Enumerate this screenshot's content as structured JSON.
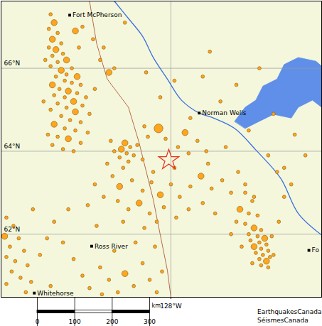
{
  "chart_data": {
    "type": "map",
    "xlim": [
      -137.6,
      -119.48
    ],
    "ylim": [
      60.48,
      67.62
    ],
    "xticks": [
      {
        "value": -128,
        "label": "128°W"
      }
    ],
    "yticks": [
      {
        "value": 62,
        "label": "62°N"
      },
      {
        "value": 64,
        "label": "64°N"
      },
      {
        "value": 66,
        "label": "66°N"
      }
    ],
    "grid": true,
    "earthquakes": {
      "color": "#ffa51f",
      "marker": "circle",
      "points": [
        [
          -134.8,
          67.3,
          2
        ],
        [
          -134.6,
          67.1,
          3
        ],
        [
          -134.9,
          66.95,
          2
        ],
        [
          -134.4,
          66.85,
          2
        ],
        [
          -134.7,
          66.7,
          3
        ],
        [
          -134.2,
          66.6,
          2
        ],
        [
          -134.9,
          66.5,
          2
        ],
        [
          -134.5,
          66.45,
          3
        ],
        [
          -134.1,
          66.35,
          2
        ],
        [
          -134.7,
          66.3,
          2
        ],
        [
          -133.9,
          66.2,
          3
        ],
        [
          -134.4,
          66.15,
          2
        ],
        [
          -134.8,
          66.05,
          2
        ],
        [
          -133.6,
          66.0,
          2
        ],
        [
          -134.2,
          65.95,
          3
        ],
        [
          -133.9,
          65.85,
          2
        ],
        [
          -134.5,
          65.8,
          2
        ],
        [
          -133.3,
          65.8,
          3
        ],
        [
          -134.0,
          65.7,
          2
        ],
        [
          -133.6,
          65.65,
          2
        ],
        [
          -134.7,
          65.6,
          3
        ],
        [
          -133.1,
          65.6,
          2
        ],
        [
          -134.3,
          65.5,
          2
        ],
        [
          -133.8,
          65.45,
          3
        ],
        [
          -133.3,
          65.4,
          2
        ],
        [
          -134.6,
          65.35,
          2
        ],
        [
          -134.0,
          65.3,
          2
        ],
        [
          -132.8,
          65.3,
          2
        ],
        [
          -133.5,
          65.2,
          3
        ],
        [
          -134.4,
          65.15,
          2
        ],
        [
          -133.0,
          65.1,
          2
        ],
        [
          -133.9,
          65.05,
          2
        ],
        [
          -134.8,
          65.0,
          2
        ],
        [
          -133.4,
          64.95,
          3
        ],
        [
          -132.6,
          64.9,
          2
        ],
        [
          -134.2,
          64.85,
          2
        ],
        [
          -133.7,
          64.75,
          2
        ],
        [
          -133.1,
          64.7,
          2
        ],
        [
          -134.6,
          64.65,
          3
        ],
        [
          -134.0,
          64.55,
          2
        ],
        [
          -133.4,
          64.5,
          2
        ],
        [
          -132.7,
          64.45,
          2
        ],
        [
          -134.4,
          64.35,
          2
        ],
        [
          -133.8,
          64.3,
          3
        ],
        [
          -133.1,
          64.2,
          2
        ],
        [
          -134.7,
          64.15,
          2
        ],
        [
          -134.1,
          64.05,
          2
        ],
        [
          -133.5,
          64.0,
          2
        ],
        [
          -132.4,
          66.7,
          2
        ],
        [
          -132.0,
          66.2,
          2
        ],
        [
          -131.5,
          65.9,
          3
        ],
        [
          -132.3,
          65.5,
          2
        ],
        [
          -131.8,
          66.5,
          2
        ],
        [
          -133.2,
          66.5,
          2
        ],
        [
          -133.4,
          66.9,
          3
        ],
        [
          -135.1,
          66.2,
          2
        ],
        [
          -135.2,
          65.2,
          2
        ],
        [
          -134.95,
          64.4,
          2
        ],
        [
          -133.0,
          67.0,
          2
        ],
        [
          -130.6,
          67.1,
          2
        ],
        [
          -131.2,
          66.0,
          2
        ],
        [
          -130.8,
          64.05,
          3
        ],
        [
          -130.5,
          63.95,
          2
        ],
        [
          -130.3,
          64.1,
          2
        ],
        [
          -130.9,
          63.85,
          2
        ],
        [
          -130.6,
          64.2,
          3
        ],
        [
          -130.1,
          63.9,
          2
        ],
        [
          -131.2,
          64.0,
          2
        ],
        [
          -130.4,
          63.75,
          2
        ],
        [
          -129.9,
          64.15,
          2
        ],
        [
          -131.4,
          64.25,
          2
        ],
        [
          -129.6,
          63.8,
          2
        ],
        [
          -130.7,
          63.6,
          2
        ],
        [
          -131.6,
          63.7,
          2
        ],
        [
          -129.3,
          64.35,
          2
        ],
        [
          -128.7,
          64.55,
          4
        ],
        [
          -129.5,
          64.6,
          2
        ],
        [
          -128.3,
          64.3,
          2
        ],
        [
          -127.6,
          64.1,
          2
        ],
        [
          -127.2,
          64.45,
          3
        ],
        [
          -127.0,
          63.95,
          2
        ],
        [
          -126.5,
          64.25,
          2
        ],
        [
          -126.0,
          64.0,
          2
        ],
        [
          -127.8,
          63.6,
          2
        ],
        [
          -129.0,
          63.5,
          2
        ],
        [
          -131.3,
          63.4,
          2
        ],
        [
          -130.9,
          63.15,
          3
        ],
        [
          -130.2,
          63.3,
          2
        ],
        [
          -129.6,
          63.05,
          2
        ],
        [
          -129.1,
          63.25,
          2
        ],
        [
          -128.6,
          62.95,
          3
        ],
        [
          -128.0,
          63.2,
          2
        ],
        [
          -127.5,
          62.9,
          2
        ],
        [
          -126.9,
          63.15,
          2
        ],
        [
          -126.3,
          63.4,
          3
        ],
        [
          -125.7,
          63.1,
          2
        ],
        [
          -125.1,
          63.3,
          2
        ],
        [
          -124.6,
          63.0,
          2
        ],
        [
          -131.0,
          62.8,
          2
        ],
        [
          -130.4,
          62.6,
          2
        ],
        [
          -129.8,
          62.75,
          3
        ],
        [
          -129.2,
          62.5,
          2
        ],
        [
          -128.4,
          62.65,
          2
        ],
        [
          -127.7,
          62.4,
          2
        ],
        [
          -127.0,
          62.6,
          2
        ],
        [
          -126.2,
          62.75,
          2
        ],
        [
          -125.5,
          62.5,
          2
        ],
        [
          -130.7,
          62.3,
          2
        ],
        [
          -129.5,
          62.15,
          2
        ],
        [
          -128.8,
          62.3,
          2
        ],
        [
          -124.2,
          63.5,
          2
        ],
        [
          -123.8,
          63.2,
          2
        ],
        [
          -123.3,
          62.9,
          2
        ],
        [
          -125.9,
          63.7,
          2
        ],
        [
          -131.8,
          62.9,
          2
        ],
        [
          -132.3,
          63.2,
          2
        ],
        [
          -132.7,
          62.7,
          2
        ],
        [
          -123.8,
          63.0,
          2
        ],
        [
          -123.4,
          62.8,
          2
        ],
        [
          -124.1,
          62.6,
          3
        ],
        [
          -123.6,
          62.5,
          2
        ],
        [
          -123.1,
          62.45,
          2
        ],
        [
          -124.3,
          62.3,
          2
        ],
        [
          -123.8,
          62.25,
          2
        ],
        [
          -123.3,
          62.15,
          3
        ],
        [
          -122.9,
          62.1,
          2
        ],
        [
          -123.6,
          62.0,
          2
        ],
        [
          -123.1,
          61.95,
          2
        ],
        [
          -122.7,
          61.9,
          3
        ],
        [
          -123.5,
          61.85,
          2
        ],
        [
          -123.0,
          61.8,
          2
        ],
        [
          -122.6,
          61.75,
          2
        ],
        [
          -123.3,
          61.7,
          3
        ],
        [
          -122.9,
          61.65,
          2
        ],
        [
          -122.5,
          61.6,
          2
        ],
        [
          -123.2,
          61.55,
          2
        ],
        [
          -122.8,
          61.5,
          2
        ],
        [
          -122.4,
          61.45,
          2
        ],
        [
          -123.0,
          61.4,
          2
        ],
        [
          -122.6,
          61.35,
          3
        ],
        [
          -122.9,
          61.25,
          2
        ],
        [
          -122.5,
          61.2,
          2
        ],
        [
          -123.4,
          61.3,
          2
        ],
        [
          -122.3,
          61.95,
          2
        ],
        [
          -122.2,
          61.5,
          2
        ],
        [
          -124.6,
          62.0,
          2
        ],
        [
          -124.0,
          61.7,
          2
        ],
        [
          -121.9,
          62.3,
          2
        ],
        [
          -121.6,
          62.9,
          2
        ],
        [
          -121.2,
          63.2,
          2
        ],
        [
          -122.0,
          63.5,
          2
        ],
        [
          -124.3,
          65.6,
          2
        ],
        [
          -125.2,
          65.2,
          2
        ],
        [
          -122.2,
          64.9,
          2
        ],
        [
          -123.6,
          64.5,
          2
        ],
        [
          -121.0,
          64.4,
          2
        ],
        [
          -124.9,
          64.1,
          2
        ],
        [
          -122.5,
          63.9,
          2
        ],
        [
          -120.4,
          63.9,
          2
        ],
        [
          -126.2,
          65.8,
          2
        ],
        [
          -125.8,
          66.4,
          2
        ],
        [
          -127.8,
          65.7,
          2
        ],
        [
          -128.6,
          65.3,
          2
        ],
        [
          -129.4,
          65.9,
          2
        ],
        [
          -121.6,
          63.6,
          2
        ],
        [
          -123.0,
          66.0,
          2
        ],
        [
          -126.9,
          64.8,
          2
        ],
        [
          -137.3,
          62.4,
          2
        ],
        [
          -136.9,
          62.2,
          2
        ],
        [
          -137.4,
          61.95,
          3
        ],
        [
          -136.6,
          61.9,
          2
        ],
        [
          -137.1,
          61.7,
          2
        ],
        [
          -136.3,
          61.6,
          2
        ],
        [
          -137.3,
          61.45,
          2
        ],
        [
          -136.8,
          61.35,
          2
        ],
        [
          -136.1,
          61.25,
          2
        ],
        [
          -137.0,
          61.1,
          2
        ],
        [
          -136.5,
          60.95,
          2
        ],
        [
          -137.3,
          60.8,
          2
        ],
        [
          -135.9,
          60.85,
          2
        ],
        [
          -136.2,
          60.6,
          2
        ],
        [
          -135.4,
          61.5,
          2
        ],
        [
          -135.0,
          61.9,
          2
        ],
        [
          -134.6,
          62.3,
          2
        ],
        [
          -134.1,
          61.8,
          2
        ],
        [
          -133.5,
          61.4,
          2
        ],
        [
          -133.0,
          61.0,
          2
        ],
        [
          -132.6,
          60.7,
          2
        ],
        [
          -132.0,
          61.2,
          2
        ],
        [
          -131.5,
          60.9,
          2
        ],
        [
          -131.0,
          60.6,
          2
        ],
        [
          -130.6,
          61.05,
          3
        ],
        [
          -130.1,
          60.75,
          2
        ],
        [
          -129.6,
          61.3,
          2
        ],
        [
          -129.2,
          60.9,
          2
        ],
        [
          -128.8,
          60.6,
          2
        ],
        [
          -131.2,
          61.6,
          2
        ],
        [
          -130.0,
          61.8,
          2
        ],
        [
          -128.9,
          61.7,
          2
        ],
        [
          -134.8,
          60.75,
          2
        ],
        [
          -133.8,
          62.6,
          2
        ],
        [
          -135.8,
          62.6,
          2
        ],
        [
          -132.2,
          62.2,
          2
        ],
        [
          -128.5,
          61.1,
          2
        ],
        [
          -131.9,
          60.55,
          2
        ]
      ]
    },
    "epicenter": {
      "color": "#e8301c",
      "marker": "star",
      "point": [
        -128.12,
        63.79
      ]
    },
    "places": [
      {
        "label": "Fort McPherson",
        "lon": -133.72,
        "lat": 67.28
      },
      {
        "label": "Norman Wells",
        "lon": -126.4,
        "lat": 64.92
      },
      {
        "label": "Ross River",
        "lon": -132.48,
        "lat": 61.71
      },
      {
        "label": "Whitehorse",
        "lon": -135.72,
        "lat": 60.58
      },
      {
        "label": "Fo",
        "lon": -120.2,
        "lat": 61.61
      }
    ],
    "lakes": {
      "color": "#5f8fe8",
      "shapes": [
        [
          [
            -124.4,
            64.72
          ],
          [
            -123.8,
            65.06
          ],
          [
            -123.2,
            65.23
          ],
          [
            -122.8,
            65.57
          ],
          [
            -122.0,
            65.74
          ],
          [
            -121.6,
            66.09
          ],
          [
            -120.8,
            66.26
          ],
          [
            -119.8,
            66.17
          ],
          [
            -119.48,
            66.05
          ],
          [
            -119.48,
            65.06
          ],
          [
            -120.0,
            65.23
          ],
          [
            -120.8,
            65.06
          ],
          [
            -121.2,
            64.8
          ],
          [
            -122.2,
            64.89
          ],
          [
            -123.2,
            64.68
          ],
          [
            -123.8,
            64.55
          ]
        ]
      ]
    },
    "rivers": {
      "color": "#3a6fe0",
      "lines": [
        [
          [
            -119.48,
            61.98
          ],
          [
            -120.8,
            62.5
          ],
          [
            -121.8,
            63.35
          ],
          [
            -123.2,
            64.03
          ],
          [
            -124.4,
            64.55
          ],
          [
            -125.6,
            64.8
          ],
          [
            -126.4,
            64.92
          ],
          [
            -127.4,
            65.23
          ],
          [
            -128.2,
            65.74
          ],
          [
            -129.0,
            66.26
          ],
          [
            -129.6,
            66.77
          ],
          [
            -130.4,
            67.2
          ],
          [
            -131.2,
            67.62
          ]
        ]
      ]
    },
    "borders": {
      "color": "#b05a3c",
      "lines": [
        [
          [
            -132.6,
            67.62
          ],
          [
            -132.2,
            66.6
          ],
          [
            -131.6,
            65.74
          ],
          [
            -130.4,
            65.06
          ],
          [
            -129.8,
            64.21
          ],
          [
            -129.4,
            63.52
          ],
          [
            -129.0,
            62.84
          ],
          [
            -128.6,
            61.98
          ],
          [
            -128.2,
            61.13
          ],
          [
            -128.0,
            60.48
          ]
        ]
      ]
    },
    "scale_bar": {
      "ticks": [
        0,
        100,
        200,
        300
      ],
      "unit": "km"
    },
    "credits": [
      "EarthquakesCanada",
      "SéismesCanada"
    ]
  }
}
